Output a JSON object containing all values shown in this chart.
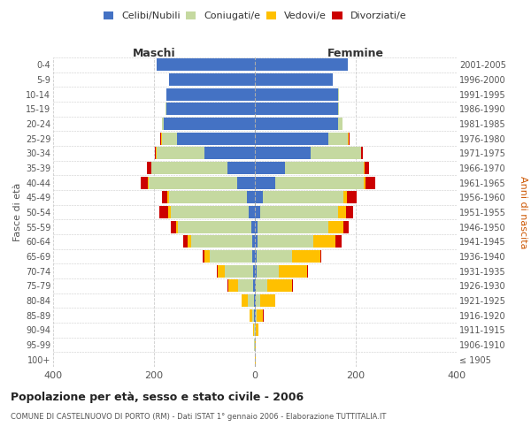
{
  "age_groups": [
    "100+",
    "95-99",
    "90-94",
    "85-89",
    "80-84",
    "75-79",
    "70-74",
    "65-69",
    "60-64",
    "55-59",
    "50-54",
    "45-49",
    "40-44",
    "35-39",
    "30-34",
    "25-29",
    "20-24",
    "15-19",
    "10-14",
    "5-9",
    "0-4"
  ],
  "birth_years": [
    "≤ 1905",
    "1906-1910",
    "1911-1915",
    "1916-1920",
    "1921-1925",
    "1926-1930",
    "1931-1935",
    "1936-1940",
    "1941-1945",
    "1946-1950",
    "1951-1955",
    "1956-1960",
    "1961-1965",
    "1966-1970",
    "1971-1975",
    "1976-1980",
    "1981-1985",
    "1986-1990",
    "1991-1995",
    "1996-2000",
    "2001-2005"
  ],
  "male_celibe": [
    0,
    0,
    0,
    1,
    2,
    3,
    4,
    5,
    6,
    7,
    12,
    15,
    35,
    55,
    100,
    155,
    180,
    175,
    175,
    170,
    195
  ],
  "male_coniugato": [
    0,
    1,
    2,
    5,
    12,
    30,
    55,
    85,
    120,
    145,
    155,
    155,
    175,
    150,
    95,
    30,
    5,
    2,
    1,
    0,
    0
  ],
  "male_vedovo": [
    0,
    1,
    2,
    5,
    12,
    20,
    15,
    10,
    8,
    5,
    5,
    3,
    2,
    1,
    1,
    1,
    0,
    0,
    0,
    0,
    0
  ],
  "male_divorziato": [
    0,
    0,
    0,
    0,
    1,
    1,
    1,
    3,
    8,
    10,
    18,
    12,
    15,
    8,
    3,
    1,
    0,
    0,
    0,
    0,
    0
  ],
  "female_celibe": [
    0,
    0,
    0,
    1,
    2,
    2,
    3,
    4,
    5,
    6,
    10,
    15,
    40,
    60,
    110,
    145,
    165,
    165,
    165,
    155,
    185
  ],
  "female_coniugato": [
    0,
    0,
    1,
    3,
    8,
    22,
    45,
    70,
    110,
    140,
    155,
    160,
    175,
    155,
    100,
    40,
    8,
    2,
    1,
    0,
    0
  ],
  "female_vedovo": [
    1,
    2,
    6,
    12,
    30,
    50,
    55,
    55,
    45,
    30,
    15,
    8,
    5,
    3,
    1,
    1,
    0,
    0,
    0,
    0,
    0
  ],
  "female_divorziato": [
    0,
    0,
    0,
    1,
    1,
    2,
    3,
    3,
    12,
    10,
    15,
    18,
    18,
    8,
    3,
    1,
    0,
    0,
    0,
    0,
    0
  ],
  "color_celibe": "#4472c4",
  "color_coniugato": "#c5d9a0",
  "color_vedovo": "#ffc000",
  "color_divorziato": "#cc0000",
  "xlim": 400,
  "title": "Popolazione per età, sesso e stato civile - 2006",
  "subtitle": "COMUNE DI CASTELNUOVO DI PORTO (RM) - Dati ISTAT 1° gennaio 2006 - Elaborazione TUTTITALIA.IT",
  "ylabel_left": "Fasce di età",
  "ylabel_right": "Anni di nascita",
  "xlabel_left": "Maschi",
  "xlabel_right": "Femmine",
  "bg_color": "#ffffff",
  "grid_color": "#cccccc"
}
